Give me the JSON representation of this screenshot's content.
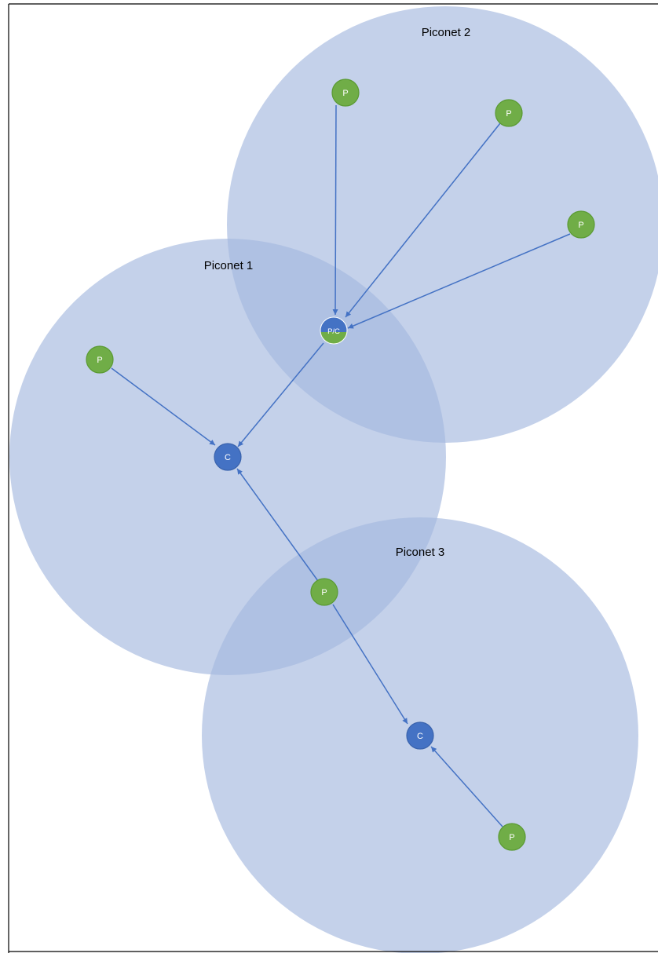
{
  "diagram": {
    "piconets": [
      {
        "id": "piconet-1",
        "label": "Piconet 1"
      },
      {
        "id": "piconet-2",
        "label": "Piconet 2"
      },
      {
        "id": "piconet-3",
        "label": "Piconet 3"
      }
    ],
    "nodes": [
      {
        "id": "p2a",
        "label": "P",
        "role": "peripheral"
      },
      {
        "id": "p2b",
        "label": "P",
        "role": "peripheral"
      },
      {
        "id": "p2c",
        "label": "P",
        "role": "peripheral"
      },
      {
        "id": "pc",
        "label": "P/C",
        "role": "peripheral-central"
      },
      {
        "id": "p1a",
        "label": "P",
        "role": "peripheral"
      },
      {
        "id": "c1",
        "label": "C",
        "role": "central"
      },
      {
        "id": "p13",
        "label": "P",
        "role": "peripheral"
      },
      {
        "id": "c3",
        "label": "C",
        "role": "central"
      },
      {
        "id": "p3a",
        "label": "P",
        "role": "peripheral"
      }
    ],
    "edges": [
      {
        "from": "p2a",
        "to": "pc"
      },
      {
        "from": "p2b",
        "to": "pc"
      },
      {
        "from": "p2c",
        "to": "pc"
      },
      {
        "from": "pc",
        "to": "c1"
      },
      {
        "from": "p1a",
        "to": "c1"
      },
      {
        "from": "p13",
        "to": "c1"
      },
      {
        "from": "p13",
        "to": "c3"
      },
      {
        "from": "p3a",
        "to": "c3"
      }
    ],
    "colors": {
      "piconet_fill": "#a5b9df",
      "central": "#4472c4",
      "peripheral": "#70ad47",
      "peripheral_stroke": "#5a9a33",
      "arrow": "#4472c4",
      "frame": "#000000"
    }
  }
}
